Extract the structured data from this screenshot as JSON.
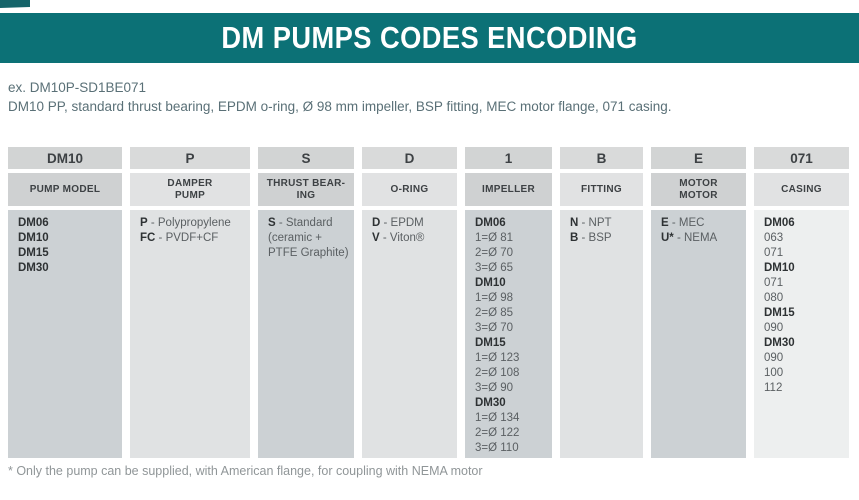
{
  "title": "DM PUMPS CODES ENCODING",
  "example": {
    "code": "ex. DM10P-SD1BE071",
    "description": "DM10 PP, standard thrust bearing, EPDM o-ring, Ø 98 mm impeller, BSP fitting, MEC motor flange, 071 casing."
  },
  "colors": {
    "brand_teal": "#0c7176",
    "body_cell_dark": "#ccd1d4",
    "body_cell_light": "#e0e2e3"
  },
  "table": {
    "columns": [
      {
        "code": "DM10",
        "label_lines": [
          "PUMP MODEL"
        ],
        "shade": "dark",
        "cell_lines": [
          {
            "bold": "DM06"
          },
          {
            "bold": "DM10"
          },
          {
            "bold": "DM15"
          },
          {
            "bold": "DM30"
          }
        ]
      },
      {
        "code": "P",
        "label_lines": [
          "DAMPER",
          "PUMP"
        ],
        "shade": "light",
        "cell_lines": [
          {
            "bold": "P",
            "rest": " - Polypropylene"
          },
          {
            "bold": "FC",
            "rest": " - PVDF+CF"
          }
        ]
      },
      {
        "code": "S",
        "label_lines": [
          "THRUST BEAR-",
          "ING"
        ],
        "shade": "dark",
        "cell_lines": [
          {
            "bold": "S",
            "rest": " - Standard"
          },
          {
            "rest": "(ceramic +"
          },
          {
            "rest": "PTFE Graphite)"
          }
        ]
      },
      {
        "code": "D",
        "label_lines": [
          "O-RING"
        ],
        "shade": "light",
        "cell_lines": [
          {
            "bold": "D",
            "rest": " - EPDM"
          },
          {
            "bold": "V",
            "rest": " - Viton®"
          }
        ]
      },
      {
        "code": "1",
        "label_lines": [
          "IMPELLER"
        ],
        "shade": "dark",
        "cell_lines": [
          {
            "bold": "DM06"
          },
          {
            "rest": "1=Ø 81"
          },
          {
            "rest": "2=Ø 70"
          },
          {
            "rest": "3=Ø 65"
          },
          {
            "bold": "DM10"
          },
          {
            "rest": "1=Ø 98"
          },
          {
            "rest": "2=Ø 85"
          },
          {
            "rest": "3=Ø 70"
          },
          {
            "bold": "DM15"
          },
          {
            "rest": "1=Ø 123"
          },
          {
            "rest": "2=Ø 108"
          },
          {
            "rest": "3=Ø 90"
          },
          {
            "bold": "DM30"
          },
          {
            "rest": "1=Ø 134"
          },
          {
            "rest": "2=Ø 122"
          },
          {
            "rest": "3=Ø 110"
          }
        ]
      },
      {
        "code": "B",
        "label_lines": [
          "FITTING"
        ],
        "shade": "light",
        "cell_lines": [
          {
            "bold": "N",
            "rest": " - NPT"
          },
          {
            "bold": "B",
            "rest": " - BSP"
          }
        ]
      },
      {
        "code": "E",
        "label_lines": [
          "MOTOR",
          "MOTOR"
        ],
        "shade": "dark",
        "cell_lines": [
          {
            "bold": "E",
            "rest": " - MEC"
          },
          {
            "bold": "U*",
            "rest": " - NEMA"
          }
        ]
      },
      {
        "code": "071",
        "label_lines": [
          "CASING"
        ],
        "shade": "lighter",
        "cell_lines": [
          {
            "bold": "DM06"
          },
          {
            "rest": "063"
          },
          {
            "rest": "071"
          },
          {
            "bold": "DM10"
          },
          {
            "rest": "071"
          },
          {
            "rest": "080"
          },
          {
            "bold": "DM15"
          },
          {
            "rest": "090"
          },
          {
            "bold": "DM30"
          },
          {
            "rest": "090"
          },
          {
            "rest": "100"
          },
          {
            "rest": "112"
          }
        ]
      }
    ]
  },
  "footnote": "* Only the pump can be supplied, with American flange, for coupling with NEMA motor"
}
